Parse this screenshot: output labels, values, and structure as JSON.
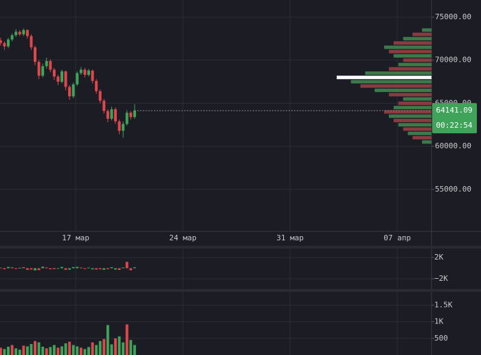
{
  "chart_data": [
    {
      "type": "candlestick",
      "up_color": "#3fa35a",
      "down_color": "#e0474c",
      "xlim": [
        12.06,
        40.24
      ],
      "ylim": [
        50120,
        76990
      ],
      "grid": true,
      "xticks": [
        {
          "value": 17,
          "label": "17 мар"
        },
        {
          "value": 24,
          "label": "24 мар"
        },
        {
          "value": 31,
          "label": "31 мар"
        },
        {
          "value": 38,
          "label": "07 апр"
        }
      ],
      "yticks": [
        {
          "value": 55000,
          "label": "55000.00"
        },
        {
          "value": 60000,
          "label": "60000.00"
        },
        {
          "value": 65000,
          "label": "65000.00"
        },
        {
          "value": 70000,
          "label": "70000.00"
        },
        {
          "value": 75000,
          "label": "75000.00"
        }
      ],
      "x": [
        12.1,
        12.35,
        12.6,
        12.85,
        13.1,
        13.35,
        13.6,
        13.85,
        14.1,
        14.35,
        14.6,
        14.85,
        15.1,
        15.35,
        15.6,
        15.85,
        16.1,
        16.35,
        16.6,
        16.85,
        17.1,
        17.35,
        17.6,
        17.85,
        18.1,
        18.35,
        18.6,
        18.85,
        19.1,
        19.35,
        19.6,
        19.85,
        20.1,
        20.35,
        20.6,
        20.85
      ],
      "open": [
        72300,
        72000,
        71600,
        72400,
        72900,
        73300,
        73000,
        73500,
        72800,
        71500,
        69800,
        68200,
        69300,
        69900,
        68900,
        68100,
        67500,
        68700,
        66900,
        65800,
        67200,
        68500,
        68900,
        68300,
        68800,
        67600,
        66400,
        65300,
        64100,
        63200,
        64300,
        62900,
        61800,
        62600,
        63900,
        63400
      ],
      "high": [
        72600,
        72200,
        72600,
        73100,
        73600,
        73500,
        73700,
        73600,
        73000,
        71700,
        70000,
        69600,
        70300,
        70100,
        69100,
        68300,
        68900,
        68800,
        67100,
        67400,
        68700,
        69200,
        69100,
        69000,
        68900,
        67800,
        66600,
        65500,
        64300,
        64600,
        64500,
        63100,
        62900,
        64200,
        64100,
        64900
      ],
      "low": [
        71700,
        71200,
        71400,
        72200,
        72700,
        72800,
        72800,
        72500,
        71200,
        69400,
        67800,
        68000,
        69000,
        68600,
        67700,
        67100,
        67300,
        66500,
        65400,
        65600,
        67000,
        68300,
        68000,
        68100,
        67300,
        66100,
        65000,
        63800,
        62800,
        63000,
        62600,
        61400,
        61000,
        62400,
        63100,
        63200
      ],
      "close": [
        72000,
        71600,
        72400,
        72900,
        73300,
        73000,
        73500,
        72800,
        71500,
        69800,
        68200,
        69300,
        69900,
        68900,
        68100,
        67500,
        68700,
        66900,
        65800,
        67200,
        68500,
        68900,
        68300,
        68800,
        67600,
        66400,
        65300,
        64100,
        63200,
        64300,
        62900,
        61800,
        62600,
        63900,
        63400,
        64141.09
      ],
      "last_price": 64141.09,
      "last_label_color": "#3fa35a",
      "countdown": "00:22:54",
      "profile": {
        "xlim": [
          0,
          100
        ],
        "color": "#3b7a4a",
        "alt_color": "#8a3a40",
        "poc_color": "#ffffff",
        "prices": [
          60500,
          61000,
          61500,
          62000,
          62500,
          63000,
          63500,
          64000,
          64500,
          65000,
          65500,
          66000,
          66500,
          67000,
          67500,
          68000,
          68500,
          69000,
          69500,
          70000,
          70500,
          71000,
          71500,
          72000,
          72500,
          73000,
          73500
        ],
        "values": [
          10,
          20,
          25,
          30,
          35,
          40,
          45,
          50,
          40,
          35,
          30,
          45,
          60,
          75,
          85,
          100,
          70,
          45,
          35,
          30,
          40,
          45,
          50,
          40,
          30,
          20,
          10
        ]
      }
    },
    {
      "type": "bar",
      "up_color": "#3fa35a",
      "down_color": "#e0474c",
      "xlim": [
        12.06,
        40.24
      ],
      "ylim": [
        -3800,
        3700
      ],
      "yticks": [
        {
          "value": -2000,
          "label": "−2K"
        },
        {
          "value": 2000,
          "label": "2K"
        }
      ],
      "x": [
        12.1,
        12.35,
        12.6,
        12.85,
        13.1,
        13.35,
        13.6,
        13.85,
        14.1,
        14.35,
        14.6,
        14.85,
        15.1,
        15.35,
        15.6,
        15.85,
        16.1,
        16.35,
        16.6,
        16.85,
        17.1,
        17.35,
        17.6,
        17.85,
        18.1,
        18.35,
        18.6,
        18.85,
        19.1,
        19.35,
        19.6,
        19.85,
        20.1,
        20.35,
        20.6,
        20.85
      ],
      "values": [
        120,
        -200,
        250,
        180,
        -150,
        90,
        200,
        -300,
        -250,
        -400,
        -350,
        300,
        150,
        -200,
        -180,
        -120,
        250,
        -300,
        -280,
        220,
        260,
        140,
        -150,
        120,
        -220,
        -250,
        -200,
        -300,
        -180,
        200,
        -260,
        -320,
        150,
        1200,
        -380,
        180
      ]
    },
    {
      "type": "bar",
      "up_color": "#3fa35a",
      "down_color": "#e0474c",
      "xlim": [
        12.06,
        40.24
      ],
      "ylim": [
        0,
        1900
      ],
      "yticks": [
        {
          "value": 500,
          "label": "500"
        },
        {
          "value": 1000,
          "label": "1K"
        },
        {
          "value": 1500,
          "label": "1.5K"
        }
      ],
      "x": [
        12.1,
        12.35,
        12.6,
        12.85,
        13.1,
        13.35,
        13.6,
        13.85,
        14.1,
        14.35,
        14.6,
        14.85,
        15.1,
        15.35,
        15.6,
        15.85,
        16.1,
        16.35,
        16.6,
        16.85,
        17.1,
        17.35,
        17.6,
        17.85,
        18.1,
        18.35,
        18.6,
        18.85,
        19.1,
        19.35,
        19.6,
        19.85,
        20.1,
        20.35,
        20.6,
        20.85
      ],
      "values": [
        220,
        180,
        250,
        300,
        200,
        160,
        280,
        260,
        330,
        420,
        380,
        250,
        200,
        240,
        300,
        220,
        260,
        350,
        400,
        300,
        260,
        220,
        180,
        240,
        380,
        300,
        420,
        480,
        900,
        320,
        500,
        560,
        380,
        920,
        450,
        300
      ]
    }
  ]
}
